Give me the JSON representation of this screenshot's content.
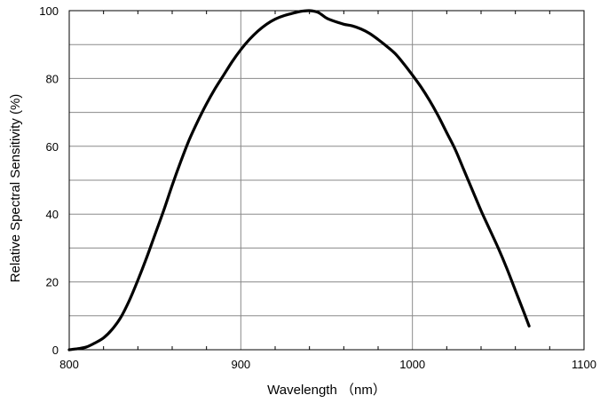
{
  "chart_data": {
    "type": "line",
    "title": "",
    "xlabel": "Wavelength （nm）",
    "ylabel": "Relative Spectral Sensitivity (%)",
    "xlim": [
      800,
      1100
    ],
    "ylim": [
      0,
      100
    ],
    "x_ticks": [
      800,
      900,
      1000,
      1100
    ],
    "x_tick_labels": [
      "800",
      "900",
      "1000",
      "1100"
    ],
    "y_ticks": [
      0,
      20,
      40,
      60,
      80,
      100
    ],
    "y_tick_labels": [
      "0",
      "20",
      "40",
      "60",
      "80",
      "100"
    ],
    "grid": true,
    "legend": "none",
    "series": [
      {
        "color": "#000000",
        "points": [
          [
            800,
            0
          ],
          [
            805,
            0.3
          ],
          [
            810,
            0.8
          ],
          [
            815,
            2
          ],
          [
            820,
            3.5
          ],
          [
            825,
            6
          ],
          [
            830,
            9.5
          ],
          [
            835,
            14.5
          ],
          [
            840,
            20.5
          ],
          [
            845,
            27
          ],
          [
            850,
            34
          ],
          [
            855,
            41
          ],
          [
            860,
            48.5
          ],
          [
            865,
            55.5
          ],
          [
            870,
            62
          ],
          [
            875,
            67.5
          ],
          [
            880,
            72.5
          ],
          [
            885,
            77
          ],
          [
            890,
            81
          ],
          [
            895,
            85
          ],
          [
            900,
            88.5
          ],
          [
            905,
            91.5
          ],
          [
            910,
            94
          ],
          [
            915,
            96
          ],
          [
            920,
            97.5
          ],
          [
            925,
            98.5
          ],
          [
            930,
            99.2
          ],
          [
            935,
            99.8
          ],
          [
            940,
            100
          ],
          [
            945,
            99.5
          ],
          [
            950,
            97.8
          ],
          [
            955,
            96.8
          ],
          [
            960,
            96
          ],
          [
            965,
            95.5
          ],
          [
            970,
            94.6
          ],
          [
            975,
            93.3
          ],
          [
            980,
            91.5
          ],
          [
            985,
            89.5
          ],
          [
            990,
            87.3
          ],
          [
            995,
            84.3
          ],
          [
            1000,
            81
          ],
          [
            1005,
            77.5
          ],
          [
            1010,
            73.5
          ],
          [
            1015,
            69
          ],
          [
            1020,
            64
          ],
          [
            1025,
            59
          ],
          [
            1030,
            53
          ],
          [
            1035,
            47
          ],
          [
            1040,
            41
          ],
          [
            1045,
            35.5
          ],
          [
            1050,
            30
          ],
          [
            1055,
            24
          ],
          [
            1060,
            17.5
          ],
          [
            1065,
            11
          ],
          [
            1068,
            7
          ]
        ]
      }
    ]
  }
}
